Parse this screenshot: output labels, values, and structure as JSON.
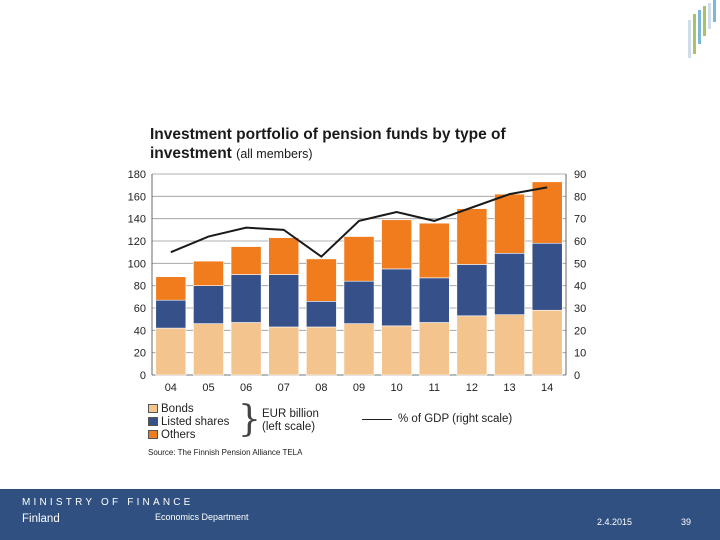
{
  "slide": {
    "ministry": "MINISTRY OF FINANCE",
    "country": "Finland",
    "department": "Economics Department",
    "date": "2.4.2015",
    "page_number": "39"
  },
  "colors": {
    "bonds": "#f4c48e",
    "listed_shares": "#36508a",
    "others": "#f07c1e",
    "footer": "#2f5080",
    "logo_bars": [
      "#a8c26a",
      "#7bb8d8",
      "#cfdcea"
    ]
  },
  "legend": {
    "items": [
      "Bonds",
      "Listed shares",
      "Others"
    ],
    "left_scale_line1": "EUR billion",
    "left_scale_line2": "(left scale)",
    "gdp": "% of GDP (right scale)"
  },
  "chart_data": {
    "type": "bar",
    "stacked": true,
    "title": "Investment portfolio of pension funds by type of",
    "title_line2": "investment",
    "subtitle": "(all members)",
    "source": "Source: The Finnish Pension Alliance TELA",
    "categories": [
      "04",
      "05",
      "06",
      "07",
      "08",
      "09",
      "10",
      "11",
      "12",
      "13",
      "14"
    ],
    "ylim": [
      0,
      180
    ],
    "yticks": [
      "0",
      "20",
      "40",
      "60",
      "80",
      "100",
      "120",
      "140",
      "160",
      "180"
    ],
    "y2lim": [
      0,
      90
    ],
    "y2ticks": [
      "0",
      "10",
      "20",
      "30",
      "40",
      "50",
      "60",
      "70",
      "80",
      "90"
    ],
    "series": [
      {
        "name": "Bonds",
        "values": [
          42,
          46,
          47,
          43,
          43,
          46,
          44,
          47,
          53,
          54,
          58
        ]
      },
      {
        "name": "Listed shares",
        "values": [
          25,
          34,
          43,
          47,
          23,
          38,
          51,
          40,
          46,
          55,
          60
        ]
      },
      {
        "name": "Others",
        "values": [
          21,
          22,
          25,
          33,
          38,
          40,
          44,
          49,
          50,
          53,
          55
        ]
      }
    ],
    "line_series": {
      "name": "% of GDP",
      "axis": "right",
      "values": [
        55,
        62,
        66,
        65,
        53,
        69,
        73,
        69,
        75,
        81,
        84
      ]
    }
  }
}
